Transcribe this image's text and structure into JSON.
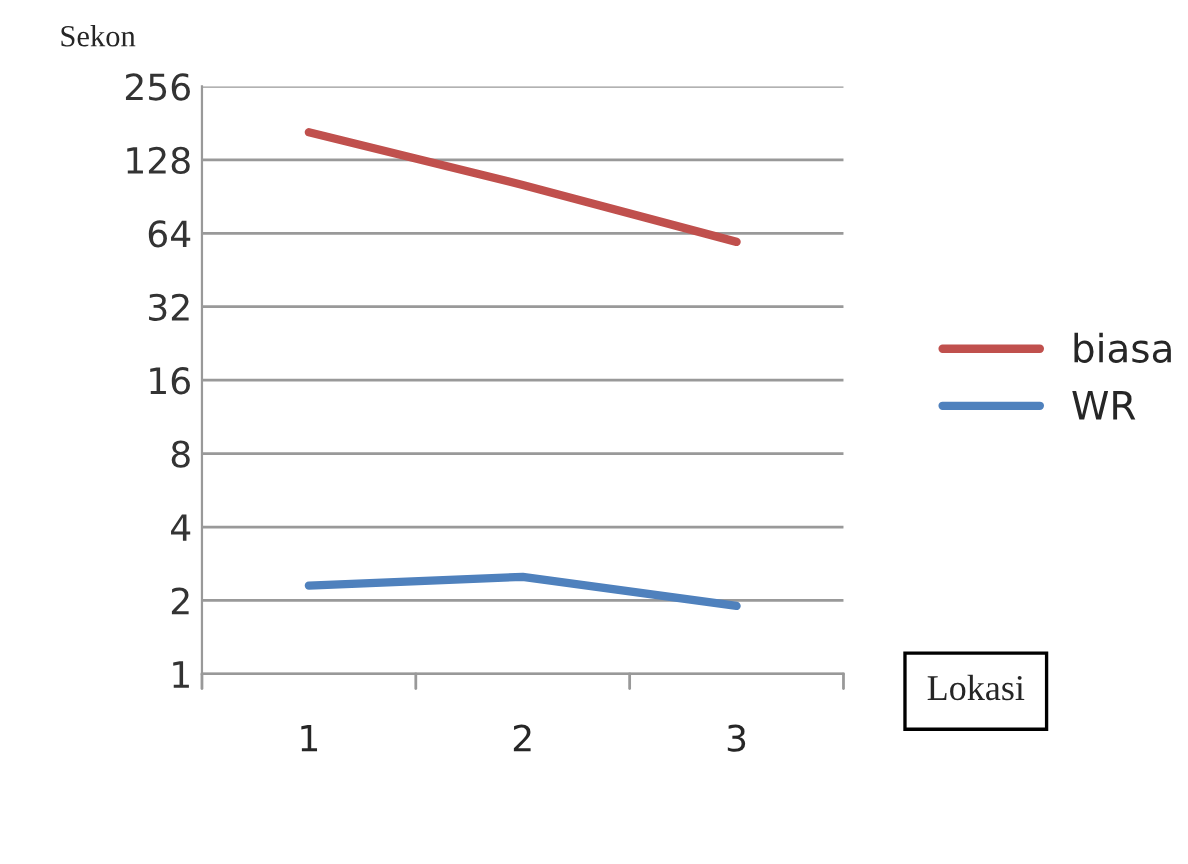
{
  "chart_data": {
    "type": "line",
    "ylabel": "Sekon",
    "xlabel": "Lokasi",
    "categories": [
      "1",
      "2",
      "3"
    ],
    "series": [
      {
        "name": "biasa",
        "color": "#c0504d",
        "values": [
          166,
          101,
          59
        ]
      },
      {
        "name": "WR",
        "color": "#4f81bd",
        "values": [
          2.3,
          2.5,
          1.9
        ]
      }
    ],
    "log": "y",
    "ylim": [
      1,
      256
    ],
    "yticks": [
      1,
      2,
      4,
      8,
      16,
      32,
      64,
      128,
      256
    ],
    "grid": "y",
    "legend": "right",
    "marker": "none"
  }
}
